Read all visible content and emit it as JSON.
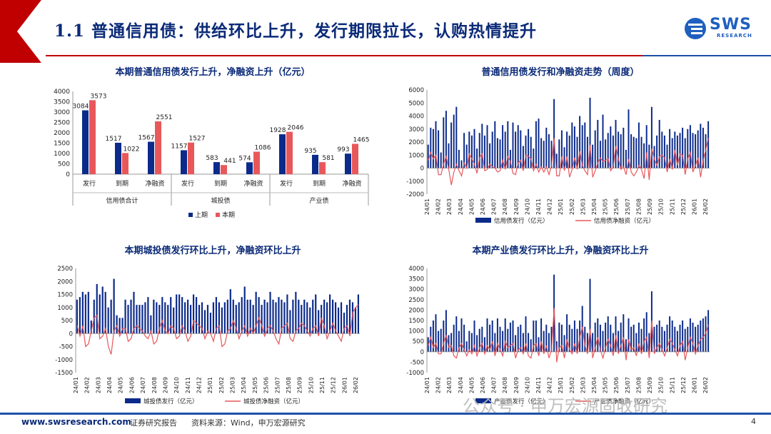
{
  "page": {
    "title": "1.1 普通信用债：供给环比上升，发行期限拉长，认购热情提升",
    "logo_text": "SWS",
    "logo_sub": "RESEARCH",
    "footer_url": "www.swsresearch.com",
    "footer_report": "证券研究报告",
    "footer_source": "资料来源：Wind，申万宏源研究",
    "page_number": "4",
    "watermark": "公众号 · 申万宏源固收研究",
    "colors": {
      "navy": "#0b2a8a",
      "red": "#e8585b",
      "title": "#0a2a78",
      "accent": "#c00000",
      "brand": "#1f5fbf"
    }
  },
  "chart_data": [
    {
      "type": "bar",
      "title": "本期普通信用债发行上升，净融资上升（亿元）",
      "ylim": [
        0,
        4000
      ],
      "yticks": [
        0,
        500,
        1000,
        1500,
        2000,
        2500,
        3000,
        3500,
        4000
      ],
      "categories": [
        "发行",
        "到期",
        "净融资",
        "发行",
        "到期",
        "净融资",
        "发行",
        "到期",
        "净融资"
      ],
      "groups": [
        "信用债合计",
        "城投债",
        "产业债"
      ],
      "series": [
        {
          "name": "上期",
          "values": [
            3084,
            1517,
            1567,
            1157,
            583,
            574,
            1928,
            935,
            993
          ]
        },
        {
          "name": "本期",
          "values": [
            3573,
            1022,
            2551,
            1527,
            441,
            1086,
            2046,
            581,
            1465
          ]
        }
      ]
    },
    {
      "type": "bar+line",
      "title": "普通信用债发行和净融资走势（周度）",
      "ylim": [
        -2000,
        6000
      ],
      "yticks": [
        -2000,
        -1000,
        0,
        1000,
        2000,
        3000,
        4000,
        5000,
        6000
      ],
      "x_tick_labels": [
        "24/01",
        "24/02",
        "24/03",
        "24/04",
        "24/05",
        "24/06",
        "24/07",
        "24/08",
        "24/09",
        "24/10",
        "24/11",
        "24/12",
        "25/01",
        "25/02",
        "25/03",
        "25/04",
        "25/05",
        "25/06",
        "25/07",
        "25/08",
        "25/09",
        "25/10",
        "25/11",
        "25/12",
        "26/01",
        "26/02"
      ],
      "series": [
        {
          "name": "信用债发行（亿元）",
          "values": [
            1800,
            3100,
            3000,
            3600,
            2900,
            1200,
            3900,
            4400,
            1900,
            3500,
            4100,
            4700,
            1400,
            600,
            2700,
            1800,
            2800,
            2500,
            3000,
            1500,
            2700,
            3400,
            2500,
            3300,
            1900,
            2800,
            3600,
            2300,
            2200,
            3300,
            2800,
            3600,
            1400,
            3500,
            2800,
            3300,
            2900,
            1700,
            2500,
            3000,
            2400,
            1500,
            3600,
            3800,
            2300,
            2100,
            3100,
            2600,
            2100,
            5300,
            1100,
            2200,
            2900,
            1600,
            2800,
            2500,
            3500,
            3200,
            2400,
            4000,
            3300,
            3500,
            2400,
            5400,
            1800,
            2900,
            3700,
            2100,
            4100,
            2200,
            2700,
            3200,
            2500,
            3700,
            2800,
            2600,
            3100,
            1400,
            4500,
            2600,
            2400,
            2300,
            3500,
            2400,
            1900,
            3300,
            1800,
            4700,
            1700,
            2500,
            3700,
            2800,
            2500,
            1800,
            3000,
            2300,
            2800,
            2500,
            2700,
            3100,
            2300,
            3000,
            3300,
            2700,
            2600,
            2900,
            3400,
            3100,
            2600,
            3600
          ]
        },
        {
          "name": "信用债净融资（亿元）",
          "values": [
            600,
            1200,
            700,
            1000,
            -500,
            -500,
            300,
            900,
            -100,
            -1300,
            -300,
            300,
            -200,
            -600,
            400,
            0,
            1100,
            700,
            300,
            -400,
            800,
            1100,
            -200,
            -100,
            300,
            100,
            0,
            -300,
            -200,
            600,
            -100,
            900,
            500,
            -400,
            -500,
            400,
            600,
            -200,
            1000,
            900,
            700,
            -200,
            300,
            -300,
            100,
            -300,
            100,
            -500,
            200,
            2300,
            -600,
            -600,
            900,
            -200,
            900,
            -700,
            -100,
            800,
            -100,
            1300,
            200,
            -200,
            -500,
            1800,
            -700,
            -200,
            400,
            800,
            500,
            600,
            700,
            -200,
            100,
            1700,
            700,
            -100,
            100,
            -500,
            700,
            -300,
            -600,
            -300,
            200,
            -100,
            -800,
            1200,
            -900,
            1500,
            700,
            200,
            900,
            1000,
            800,
            -300,
            700,
            -100,
            1400,
            200,
            1100,
            1000,
            -500,
            700,
            1200,
            -300,
            200,
            800,
            -700,
            600,
            1400,
            2300
          ]
        }
      ]
    },
    {
      "type": "bar+line",
      "title": "本期城投债发行环比上升，净融资环比上升",
      "ylim": [
        -1500,
        2500
      ],
      "yticks": [
        -1500,
        -1000,
        -500,
        0,
        500,
        1000,
        1500,
        2000,
        2500
      ],
      "x_tick_labels": [
        "24/01",
        "24/02",
        "24/03",
        "24/04",
        "24/05",
        "24/06",
        "24/07",
        "24/08",
        "24/09",
        "24/10",
        "24/11",
        "24/12",
        "25/01",
        "25/02",
        "25/03",
        "25/04",
        "25/05",
        "25/06",
        "25/07",
        "25/08",
        "25/09",
        "25/10",
        "25/11",
        "25/12",
        "26/01",
        "26/02"
      ],
      "series": [
        {
          "name": "城投债发行（亿元）",
          "values": [
            1300,
            1400,
            1600,
            1500,
            1600,
            500,
            1300,
            1900,
            1500,
            1800,
            1600,
            1000,
            1300,
            2100,
            700,
            600,
            600,
            1300,
            1100,
            1300,
            1600,
            1100,
            1100,
            1100,
            1200,
            1400,
            700,
            1300,
            1200,
            1100,
            1400,
            1200,
            1100,
            1400,
            1000,
            1500,
            1500,
            1400,
            1200,
            1300,
            1100,
            1500,
            1400,
            1100,
            1200,
            900,
            1100,
            800,
            1200,
            1400,
            1200,
            1000,
            1200,
            1300,
            1700,
            1300,
            1100,
            1200,
            1400,
            1800,
            1300,
            1300,
            1100,
            1600,
            1400,
            1100,
            1300,
            1200,
            1600,
            1300,
            1200,
            1400,
            1300,
            1200,
            1500,
            900,
            1300,
            1600,
            1300,
            1100,
            1300,
            1200,
            1000,
            1300,
            1500,
            900,
            1100,
            1300,
            1200,
            1500,
            1300,
            1200,
            1000,
            1200,
            800,
            1100,
            1300,
            1200,
            1000,
            1500
          ]
        },
        {
          "name": "城投债净融资（亿元）",
          "values": [
            300,
            -100,
            300,
            -500,
            -400,
            100,
            600,
            700,
            -200,
            -100,
            200,
            -500,
            -800,
            100,
            300,
            -100,
            200,
            200,
            -300,
            -200,
            200,
            300,
            200,
            100,
            -100,
            -200,
            100,
            -400,
            -300,
            200,
            500,
            100,
            0,
            300,
            200,
            -200,
            -100,
            300,
            100,
            -300,
            -100,
            500,
            400,
            300,
            200,
            -200,
            100,
            0,
            -300,
            200,
            300,
            -500,
            -400,
            100,
            200,
            500,
            200,
            -200,
            100,
            300,
            -100,
            200,
            0,
            300,
            600,
            300,
            -100,
            200,
            300,
            100,
            -200,
            -400,
            200,
            300,
            400,
            -200,
            -300,
            100,
            200,
            400,
            300,
            100,
            -100,
            200,
            300,
            -100,
            600,
            300,
            -200,
            100,
            400,
            100,
            -100,
            -300,
            200,
            300,
            -100,
            800,
            1000,
            1100
          ]
        }
      ]
    },
    {
      "type": "bar+line",
      "title": "本期产业债发行环比上升，净融资环比上升",
      "ylim": [
        -1000,
        4000
      ],
      "yticks": [
        -1000,
        -500,
        0,
        500,
        1000,
        1500,
        2000,
        2500,
        3000,
        3500,
        4000
      ],
      "x_tick_labels": [
        "24/01",
        "24/02",
        "24/03",
        "24/04",
        "24/05",
        "24/06",
        "24/07",
        "24/08",
        "24/09",
        "24/10",
        "24/11",
        "24/12",
        "25/01",
        "25/02",
        "25/03",
        "25/04",
        "25/05",
        "25/06",
        "25/07",
        "25/08",
        "25/09",
        "25/10",
        "25/11",
        "25/12",
        "26/01",
        "26/02"
      ],
      "series": [
        {
          "name": "产业债发行（亿元）",
          "values": [
            700,
            1200,
            1500,
            1800,
            1000,
            1100,
            1500,
            2000,
            800,
            900,
            1300,
            1700,
            1000,
            1600,
            1300,
            500,
            1000,
            900,
            1500,
            800,
            1100,
            1200,
            700,
            1600,
            1300,
            1500,
            900,
            1600,
            1200,
            1000,
            1600,
            1100,
            1400,
            1500,
            800,
            1200,
            1300,
            900,
            1700,
            900,
            600,
            1500,
            1500,
            700,
            1600,
            1000,
            1300,
            900,
            1200,
            3700,
            500,
            1400,
            1300,
            800,
            1800,
            1300,
            1100,
            1500,
            1100,
            1500,
            2200,
            1200,
            900,
            3500,
            900,
            1400,
            1600,
            1300,
            1000,
            1400,
            1700,
            1300,
            900,
            1700,
            1000,
            1400,
            1800,
            600,
            1600,
            1200,
            1300,
            900,
            1400,
            1100,
            1600,
            1900,
            900,
            2900,
            1200,
            1300,
            1500,
            1200,
            1000,
            1300,
            1700,
            1500,
            1200,
            1000,
            1300,
            1500,
            1100,
            1200,
            1600,
            1400,
            1200,
            1300,
            1500,
            1600,
            1700,
            2000
          ]
        },
        {
          "name": "产业债净融资（亿元）",
          "values": [
            300,
            700,
            200,
            400,
            -100,
            -100,
            400,
            800,
            200,
            300,
            -200,
            -300,
            200,
            400,
            100,
            -200,
            100,
            -100,
            300,
            -200,
            200,
            400,
            -100,
            300,
            100,
            500,
            -200,
            400,
            100,
            -200,
            500,
            200,
            300,
            400,
            -300,
            100,
            200,
            -100,
            400,
            -200,
            -300,
            300,
            400,
            -200,
            500,
            -100,
            300,
            -300,
            100,
            2100,
            -500,
            200,
            300,
            -300,
            600,
            100,
            -100,
            400,
            -100,
            700,
            1200,
            300,
            -100,
            1100,
            -300,
            200,
            700,
            100,
            -300,
            200,
            600,
            300,
            -200,
            800,
            -100,
            300,
            700,
            -400,
            600,
            100,
            200,
            -200,
            400,
            -100,
            500,
            700,
            -300,
            1500,
            -100,
            200,
            400,
            100,
            -200,
            200,
            600,
            400,
            100,
            -200,
            300,
            500,
            -400,
            200,
            700,
            400,
            -100,
            300,
            600,
            700,
            900,
            1300
          ]
        }
      ]
    }
  ]
}
